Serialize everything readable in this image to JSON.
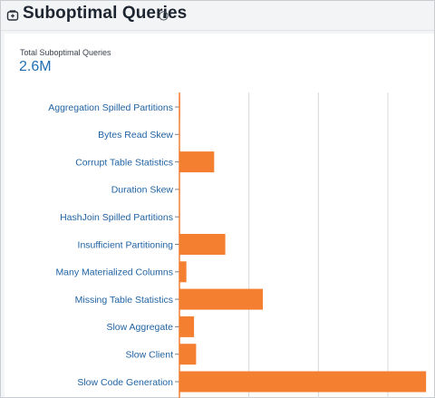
{
  "header": {
    "title": "Suboptimal Queries",
    "icon": "widget-icon",
    "info_icon": "info-icon"
  },
  "kpi": {
    "label": "Total Suboptimal Queries",
    "value": "2.6M"
  },
  "colors": {
    "bar": "#f47f31",
    "label": "#2163a3",
    "kpi_value": "#1f6fb2",
    "grid": "#d6d8dc",
    "axis": "#f47f31"
  },
  "chart_data": {
    "type": "bar",
    "orientation": "horizontal",
    "categories": [
      "Aggregation Spilled Partitions",
      "Bytes Read Skew",
      "Corrupt Table Statistics",
      "Duration Skew",
      "HashJoin Spilled Partitions",
      "Insufficient Partitioning",
      "Many Materialized Columns",
      "Missing Table Statistics",
      "Slow Aggregate",
      "Slow Client",
      "Slow Code Generation"
    ],
    "values": [
      1,
      0,
      50,
      0,
      0,
      66,
      10,
      120,
      21,
      24,
      355
    ],
    "xlim": [
      0,
      360
    ],
    "grid": true,
    "title": "",
    "xlabel": "",
    "ylabel": ""
  }
}
